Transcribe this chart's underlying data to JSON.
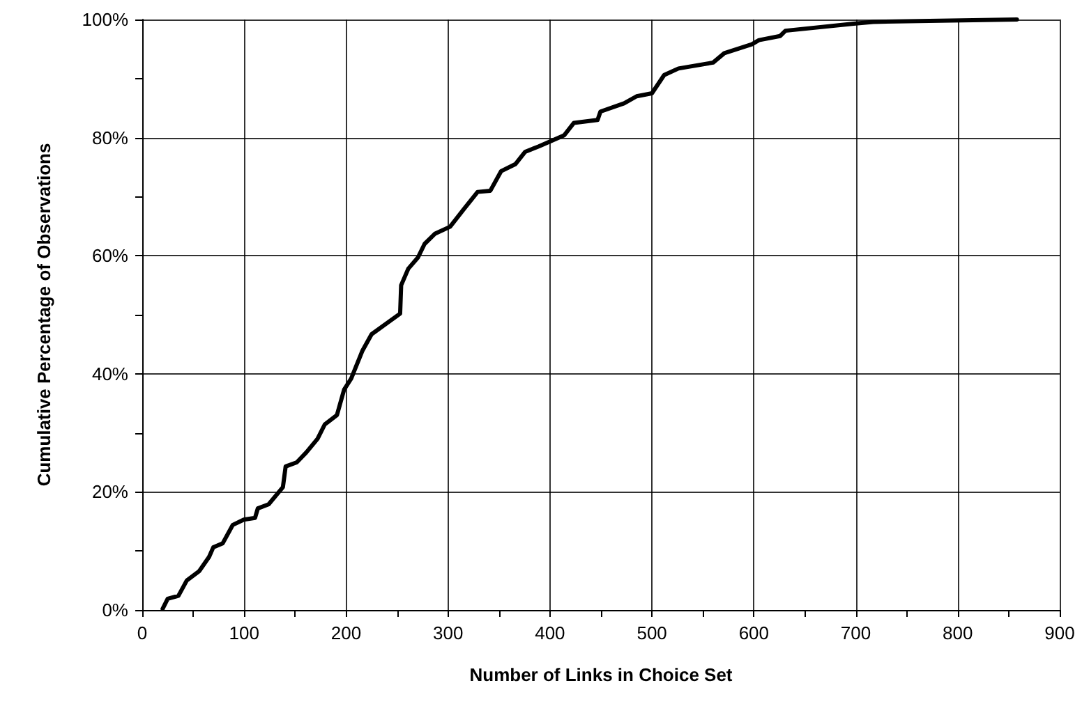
{
  "chart_data": {
    "type": "line",
    "xlabel": "Number of Links in Choice Set",
    "ylabel": "Cumulative Percentage of Observations",
    "x": [
      20,
      25,
      35.5,
      43.7,
      56,
      65.6,
      69.7,
      79,
      88.8,
      99.7,
      110.7,
      113.4,
      124,
      138,
      140.7,
      151.6,
      161,
      172,
      179,
      191,
      198,
      205,
      216,
      225,
      253,
      254,
      261,
      270.5,
      277,
      287,
      302,
      315.6,
      329,
      341.5,
      352,
      366,
      375.7,
      389,
      414,
      423.5,
      446.7,
      449.5,
      472.7,
      485,
      500,
      512,
      526,
      560,
      571,
      598,
      605,
      625.7,
      631,
      698,
      717,
      858
    ],
    "series": [
      {
        "color": "#000000",
        "values": [
          0.2,
          1.9,
          2.4,
          5,
          6.6,
          9,
          10.6,
          11.3,
          14.4,
          15.3,
          15.6,
          17.2,
          17.9,
          20.8,
          24.3,
          25,
          26.7,
          29,
          31.4,
          33,
          37.3,
          39.2,
          43.9,
          46.7,
          50.2,
          55,
          57.8,
          59.7,
          62,
          63.7,
          64.9,
          67.9,
          70.8,
          71,
          74.3,
          75.5,
          77.6,
          78.5,
          80.4,
          82.5,
          83,
          84.4,
          85.8,
          87,
          87.5,
          90.6,
          91.7,
          92.7,
          94.3,
          95.8,
          96.5,
          97.2,
          98.1,
          99.3,
          99.6,
          100
        ]
      }
    ],
    "xlim": [
      0,
      900
    ],
    "xticks": [
      0,
      {
        "value": 50,
        "label": null
      },
      100,
      {
        "value": 150,
        "label": null
      },
      200,
      {
        "value": 250,
        "label": null
      },
      300,
      {
        "value": 350,
        "label": null
      },
      400,
      {
        "value": 450,
        "label": null
      },
      500,
      {
        "value": 550,
        "label": null
      },
      600,
      {
        "value": 650,
        "label": null
      },
      700,
      {
        "value": 750,
        "label": null
      },
      800,
      {
        "value": 850,
        "label": null
      },
      900
    ],
    "ylim": [
      0,
      100
    ],
    "yticks": [
      {
        "value": 0,
        "label": "0%"
      },
      {
        "value": 10,
        "label": null
      },
      {
        "value": 20,
        "label": "20%"
      },
      {
        "value": 30,
        "label": null
      },
      {
        "value": 40,
        "label": "40%"
      },
      {
        "value": 50,
        "label": null
      },
      {
        "value": 60,
        "label": "60%"
      },
      {
        "value": 70,
        "label": null
      },
      {
        "value": 80,
        "label": "80%"
      },
      {
        "value": 90,
        "label": null
      },
      {
        "value": 100,
        "label": "100%"
      }
    ],
    "grid": true,
    "marker": "none",
    "line_style": "solid"
  }
}
